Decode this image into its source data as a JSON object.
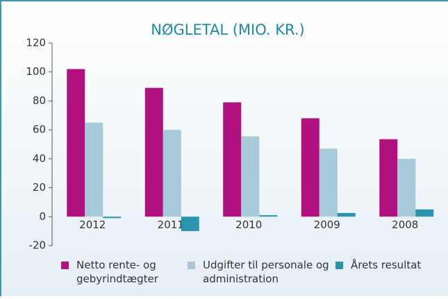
{
  "chart_data": {
    "type": "bar",
    "title": "NØGLETAL (MIO. KR.)",
    "categories": [
      "2012",
      "2011",
      "2010",
      "2009",
      "2008"
    ],
    "series": [
      {
        "name": "Netto rente- og gebyrindtægter",
        "color": "#b0117e",
        "values": [
          102,
          89,
          79,
          68,
          53.5
        ]
      },
      {
        "name": "Udgifter til personale og administration",
        "color": "#a7c9d8",
        "values": [
          65,
          60,
          55.5,
          47,
          40
        ]
      },
      {
        "name": "Årets resultat",
        "color": "#2a94ae",
        "values": [
          -1,
          -10,
          1,
          2.5,
          5
        ]
      }
    ],
    "ylim": [
      -20,
      120
    ],
    "yticks": [
      -20,
      0,
      20,
      40,
      60,
      80,
      100,
      120
    ]
  }
}
